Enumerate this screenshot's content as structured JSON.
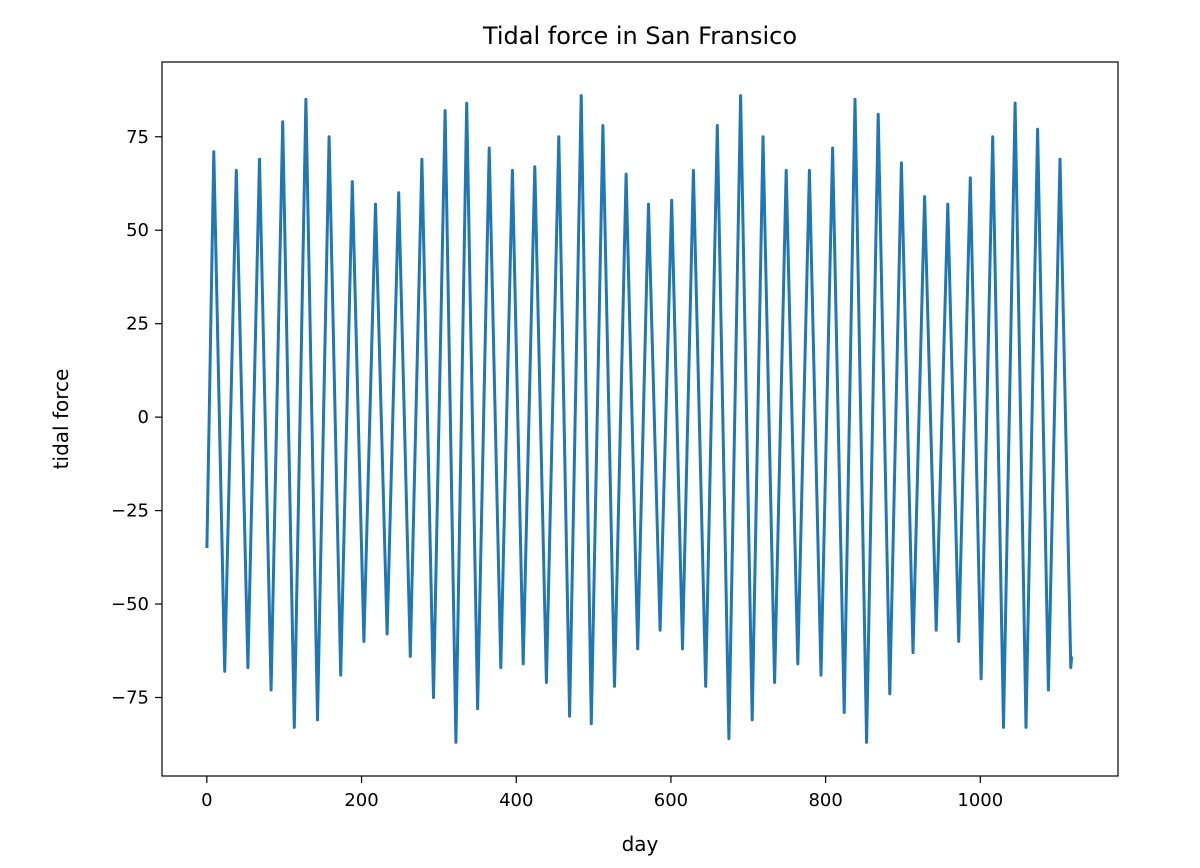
{
  "chart_data": {
    "type": "line",
    "title": "Tidal force in San Fransico",
    "xlabel": "day",
    "ylabel": "tidal force",
    "xlim": [
      -58,
      1178
    ],
    "ylim": [
      -96,
      95
    ],
    "xticks": [
      0,
      200,
      400,
      600,
      800,
      1000
    ],
    "xtick_labels": [
      "0",
      "200",
      "400",
      "600",
      "800",
      "1000"
    ],
    "yticks": [
      -75,
      -50,
      -25,
      0,
      25,
      50,
      75
    ],
    "ytick_labels": [
      "−75",
      "−50",
      "−25",
      "0",
      "25",
      "50",
      "75"
    ],
    "grid": false,
    "legend": "none",
    "series": [
      {
        "color": "#1f77b4",
        "x": [
          0,
          9,
          23,
          38,
          53,
          68,
          83,
          98,
          113,
          128,
          143,
          158,
          173,
          188,
          203,
          218,
          233,
          248,
          263,
          278,
          293,
          308,
          322,
          336,
          350,
          365,
          380,
          395,
          409,
          424,
          439,
          455,
          469,
          484,
          497,
          512,
          527,
          542,
          557,
          571,
          586,
          601,
          615,
          629,
          645,
          660,
          675,
          690,
          705,
          719,
          734,
          749,
          764,
          779,
          794,
          809,
          824,
          838,
          853,
          868,
          883,
          898,
          913,
          928,
          943,
          958,
          972,
          987,
          1001,
          1016,
          1030,
          1045,
          1059,
          1074,
          1088,
          1103,
          1117,
          1118
        ],
        "y": [
          -35,
          71,
          -68,
          66,
          -67,
          69,
          -73,
          79,
          -83,
          85,
          -81,
          75,
          -69,
          63,
          -60,
          57,
          -58,
          60,
          -64,
          69,
          -75,
          82,
          -87,
          84,
          -78,
          72,
          -67,
          66,
          -66,
          67,
          -71,
          75,
          -80,
          86,
          -82,
          78,
          -72,
          65,
          -62,
          57,
          -57,
          58,
          -62,
          66,
          -72,
          78,
          -86,
          86,
          -81,
          75,
          -71,
          66,
          -66,
          66,
          -69,
          72,
          -79,
          85,
          -87,
          81,
          -74,
          68,
          -63,
          59,
          -57,
          57,
          -60,
          64,
          -70,
          75,
          -83,
          84,
          -83,
          77,
          -73,
          69,
          -67,
          -64
        ]
      }
    ]
  }
}
